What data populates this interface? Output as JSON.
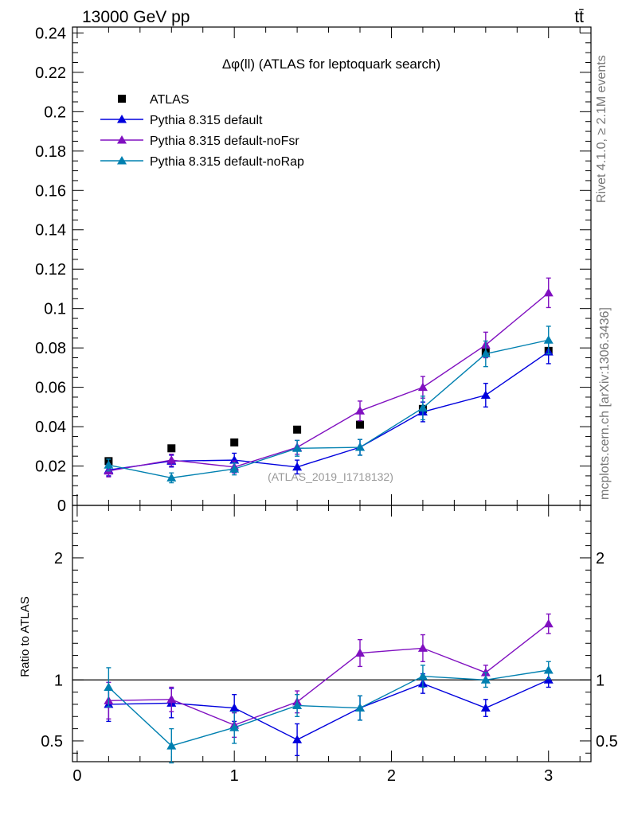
{
  "header": {
    "left": "13000 GeV pp",
    "right": "tt̄"
  },
  "side_labels": {
    "top": "Rivet 4.1.0, ≥ 2.1M events",
    "bottom": "mcplots.cern.ch [arXiv:1306.3436]"
  },
  "reference": "(ATLAS_2019_I1718132)",
  "ratio_ylabel": "Ratio to ATLAS",
  "colors": {
    "atlas": "#000000",
    "default": "#0000dd",
    "noFsr": "#8010c0",
    "noRap": "#0080b0"
  },
  "chart_data": [
    {
      "type": "line",
      "title": "Δφ(ll) (ATLAS for leptoquark search)",
      "x": [
        0.2,
        0.6,
        1.0,
        1.4,
        1.8,
        2.2,
        2.6,
        3.0
      ],
      "xlim": [
        -0.03,
        3.27
      ],
      "ylim": [
        0,
        0.243
      ],
      "yticks": [
        0,
        0.02,
        0.04,
        0.06,
        0.08,
        0.1,
        0.12,
        0.14,
        0.16,
        0.18,
        0.2,
        0.22,
        0.24
      ],
      "ytick_labels": [
        "0",
        "0.02",
        "0.04",
        "0.06",
        "0.08",
        "0.1",
        "0.12",
        "0.14",
        "0.16",
        "0.18",
        "0.2",
        "0.22",
        "0.24"
      ],
      "series": [
        {
          "name": "ATLAS",
          "key": "atlas",
          "marker": "square",
          "line": false,
          "values": [
            0.0225,
            0.029,
            0.032,
            0.0385,
            0.041,
            0.049,
            0.078,
            0.0785
          ],
          "errors": [
            0,
            0,
            0,
            0,
            0,
            0,
            0,
            0
          ]
        },
        {
          "name": "Pythia 8.315 default",
          "key": "default",
          "marker": "triangle",
          "line": true,
          "values": [
            0.018,
            0.0225,
            0.023,
            0.0195,
            0.0295,
            0.0475,
            0.056,
            0.078
          ],
          "errors": [
            0.003,
            0.003,
            0.0035,
            0.0035,
            0.004,
            0.005,
            0.006,
            0.006
          ]
        },
        {
          "name": "Pythia 8.315 default-noFsr",
          "key": "noFsr",
          "marker": "triangle",
          "line": true,
          "values": [
            0.0175,
            0.023,
            0.0195,
            0.0295,
            0.048,
            0.06,
            0.0815,
            0.108
          ],
          "errors": [
            0.003,
            0.003,
            0.003,
            0.0035,
            0.005,
            0.0055,
            0.0065,
            0.0075
          ]
        },
        {
          "name": "Pythia 8.315 default-noRap",
          "key": "noRap",
          "marker": "triangle",
          "line": true,
          "values": [
            0.0205,
            0.014,
            0.0185,
            0.029,
            0.0295,
            0.0495,
            0.077,
            0.084
          ],
          "errors": [
            0.003,
            0.0025,
            0.003,
            0.004,
            0.004,
            0.006,
            0.0065,
            0.007
          ]
        }
      ]
    },
    {
      "type": "line",
      "title": "",
      "xlabel": "",
      "ylabel": "Ratio to ATLAS",
      "x": [
        0.2,
        0.6,
        1.0,
        1.4,
        1.8,
        2.2,
        2.6,
        3.0
      ],
      "xlim": [
        -0.03,
        3.27
      ],
      "ylim": [
        0.33,
        2.43
      ],
      "xticks": [
        0,
        1,
        2,
        3
      ],
      "xtick_labels": [
        "0",
        "1",
        "2",
        "3"
      ],
      "yticks": [
        0.5,
        1,
        2
      ],
      "ytick_labels": [
        "0.5",
        "1",
        "2"
      ],
      "reference_line": 1,
      "series": [
        {
          "name": "Pythia 8.315 default",
          "key": "default",
          "values": [
            0.8,
            0.81,
            0.77,
            0.51,
            0.77,
            0.97,
            0.77,
            1.0
          ],
          "errors": [
            0.14,
            0.12,
            0.11,
            0.13,
            0.1,
            0.08,
            0.07,
            0.06
          ]
        },
        {
          "name": "Pythia 8.315 default-noFsr",
          "key": "noFsr",
          "values": [
            0.83,
            0.84,
            0.63,
            0.82,
            1.22,
            1.26,
            1.06,
            1.46
          ],
          "errors": [
            0.15,
            0.1,
            0.1,
            0.09,
            0.11,
            0.11,
            0.06,
            0.08
          ]
        },
        {
          "name": "Pythia 8.315 default-noRap",
          "key": "noRap",
          "values": [
            0.94,
            0.46,
            0.61,
            0.79,
            0.77,
            1.03,
            1.0,
            1.08
          ],
          "errors": [
            0.16,
            0.14,
            0.13,
            0.09,
            0.1,
            0.09,
            0.06,
            0.07
          ]
        }
      ]
    }
  ]
}
